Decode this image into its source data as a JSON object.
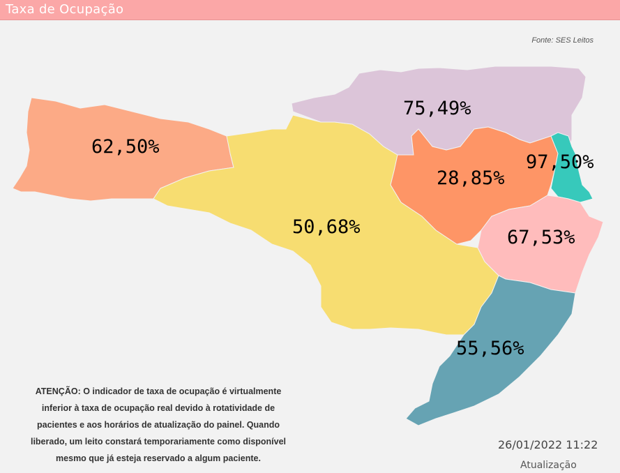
{
  "header": {
    "title": "Taxa de Ocupação"
  },
  "source": "Fonte: SES Leitos",
  "map": {
    "regions": [
      {
        "id": "oeste",
        "value": "62,50%",
        "color": "#fcaa86"
      },
      {
        "id": "meio-oeste",
        "value": "50,68%",
        "color": "#f7dd71"
      },
      {
        "id": "norte",
        "value": "75,49%",
        "color": "#dcc5d9"
      },
      {
        "id": "vale-itajai",
        "value": "28,85%",
        "color": "#fe9566"
      },
      {
        "id": "grande-florianopolis",
        "value": "97,50%",
        "color": "#37c9bb"
      },
      {
        "id": "sul",
        "value": "67,53%",
        "color": "#ffbcbc"
      },
      {
        "id": "extremo-sul",
        "value": "55,56%",
        "color": "#66a3b3"
      }
    ]
  },
  "notice": {
    "lines": [
      "ATENÇÃO: O indicador de taxa de ocupação é virtualmente",
      "inferior à taxa de ocupação real devido à rotatividade de",
      "pacientes e aos horários de atualização do painel.  Quando",
      "liberado, um leito constará temporariamente como disponível",
      "mesmo que já esteja reservado a algum paciente."
    ]
  },
  "update": {
    "datetime": "26/01/2022 11:22",
    "label": "Atualização"
  }
}
